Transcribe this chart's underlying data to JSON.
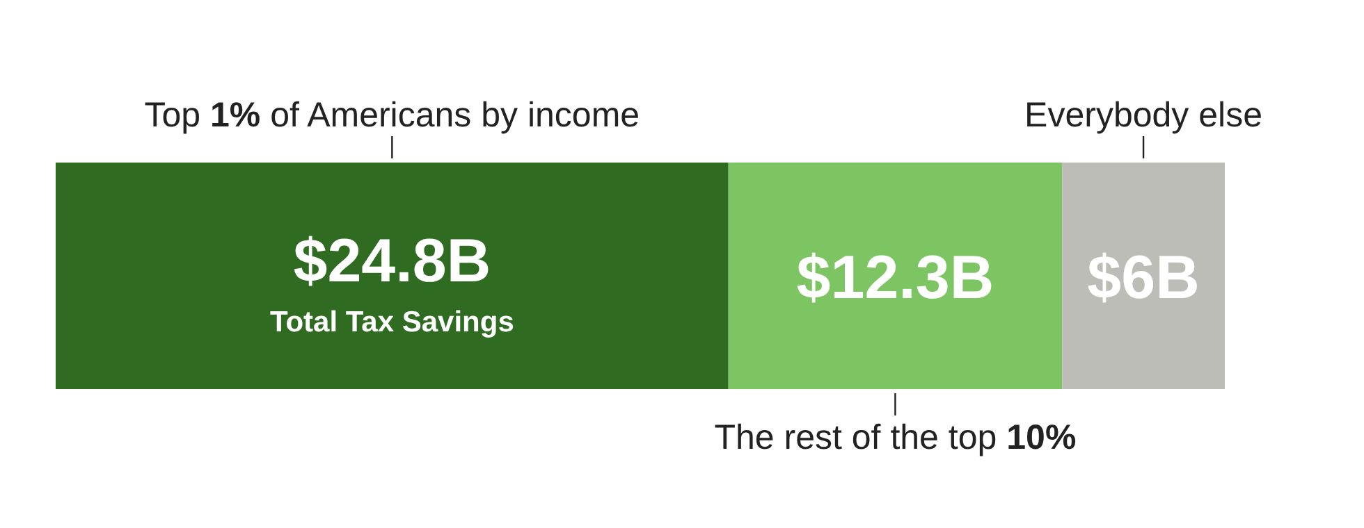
{
  "chart_data": {
    "type": "bar",
    "orientation": "horizontal",
    "stacked": true,
    "categories": [
      null
    ],
    "series": [
      {
        "name": "Top 1% of Americans by income",
        "color": "#2f6b21",
        "values": [
          24.8
        ],
        "value_labels": [
          "$24.8B"
        ]
      },
      {
        "name": "The rest of the top 10%",
        "color": "#7dc462",
        "values": [
          12.3
        ],
        "value_labels": [
          "$12.3B"
        ]
      },
      {
        "name": "Everybody else",
        "color": "#bdbdb8",
        "values": [
          6
        ],
        "value_labels": [
          "$6B"
        ]
      }
    ],
    "annotations": [
      "Total Tax Savings"
    ]
  }
}
